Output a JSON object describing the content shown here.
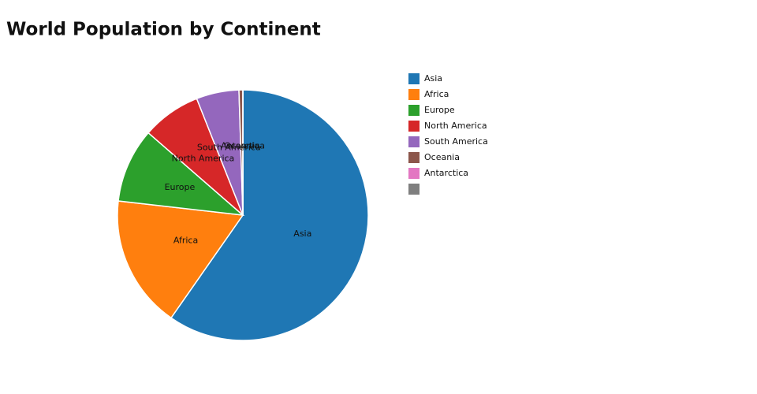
{
  "chart_data": {
    "type": "pie",
    "title": "World Population by Continent",
    "categories": [
      "Asia",
      "Africa",
      "Europe",
      "North America",
      "South America",
      "Oceania",
      "Antarctica",
      null
    ],
    "values": [
      59.7,
      17.1,
      9.6,
      7.6,
      5.5,
      0.5,
      0,
      0
    ],
    "colors": [
      "#1f77b4",
      "#ff7f0e",
      "#2ca02c",
      "#d62728",
      "#9467bd",
      "#8c564b",
      "#e377c2",
      "#7f7f7f"
    ],
    "direction": "clockwise",
    "legend": "right"
  }
}
